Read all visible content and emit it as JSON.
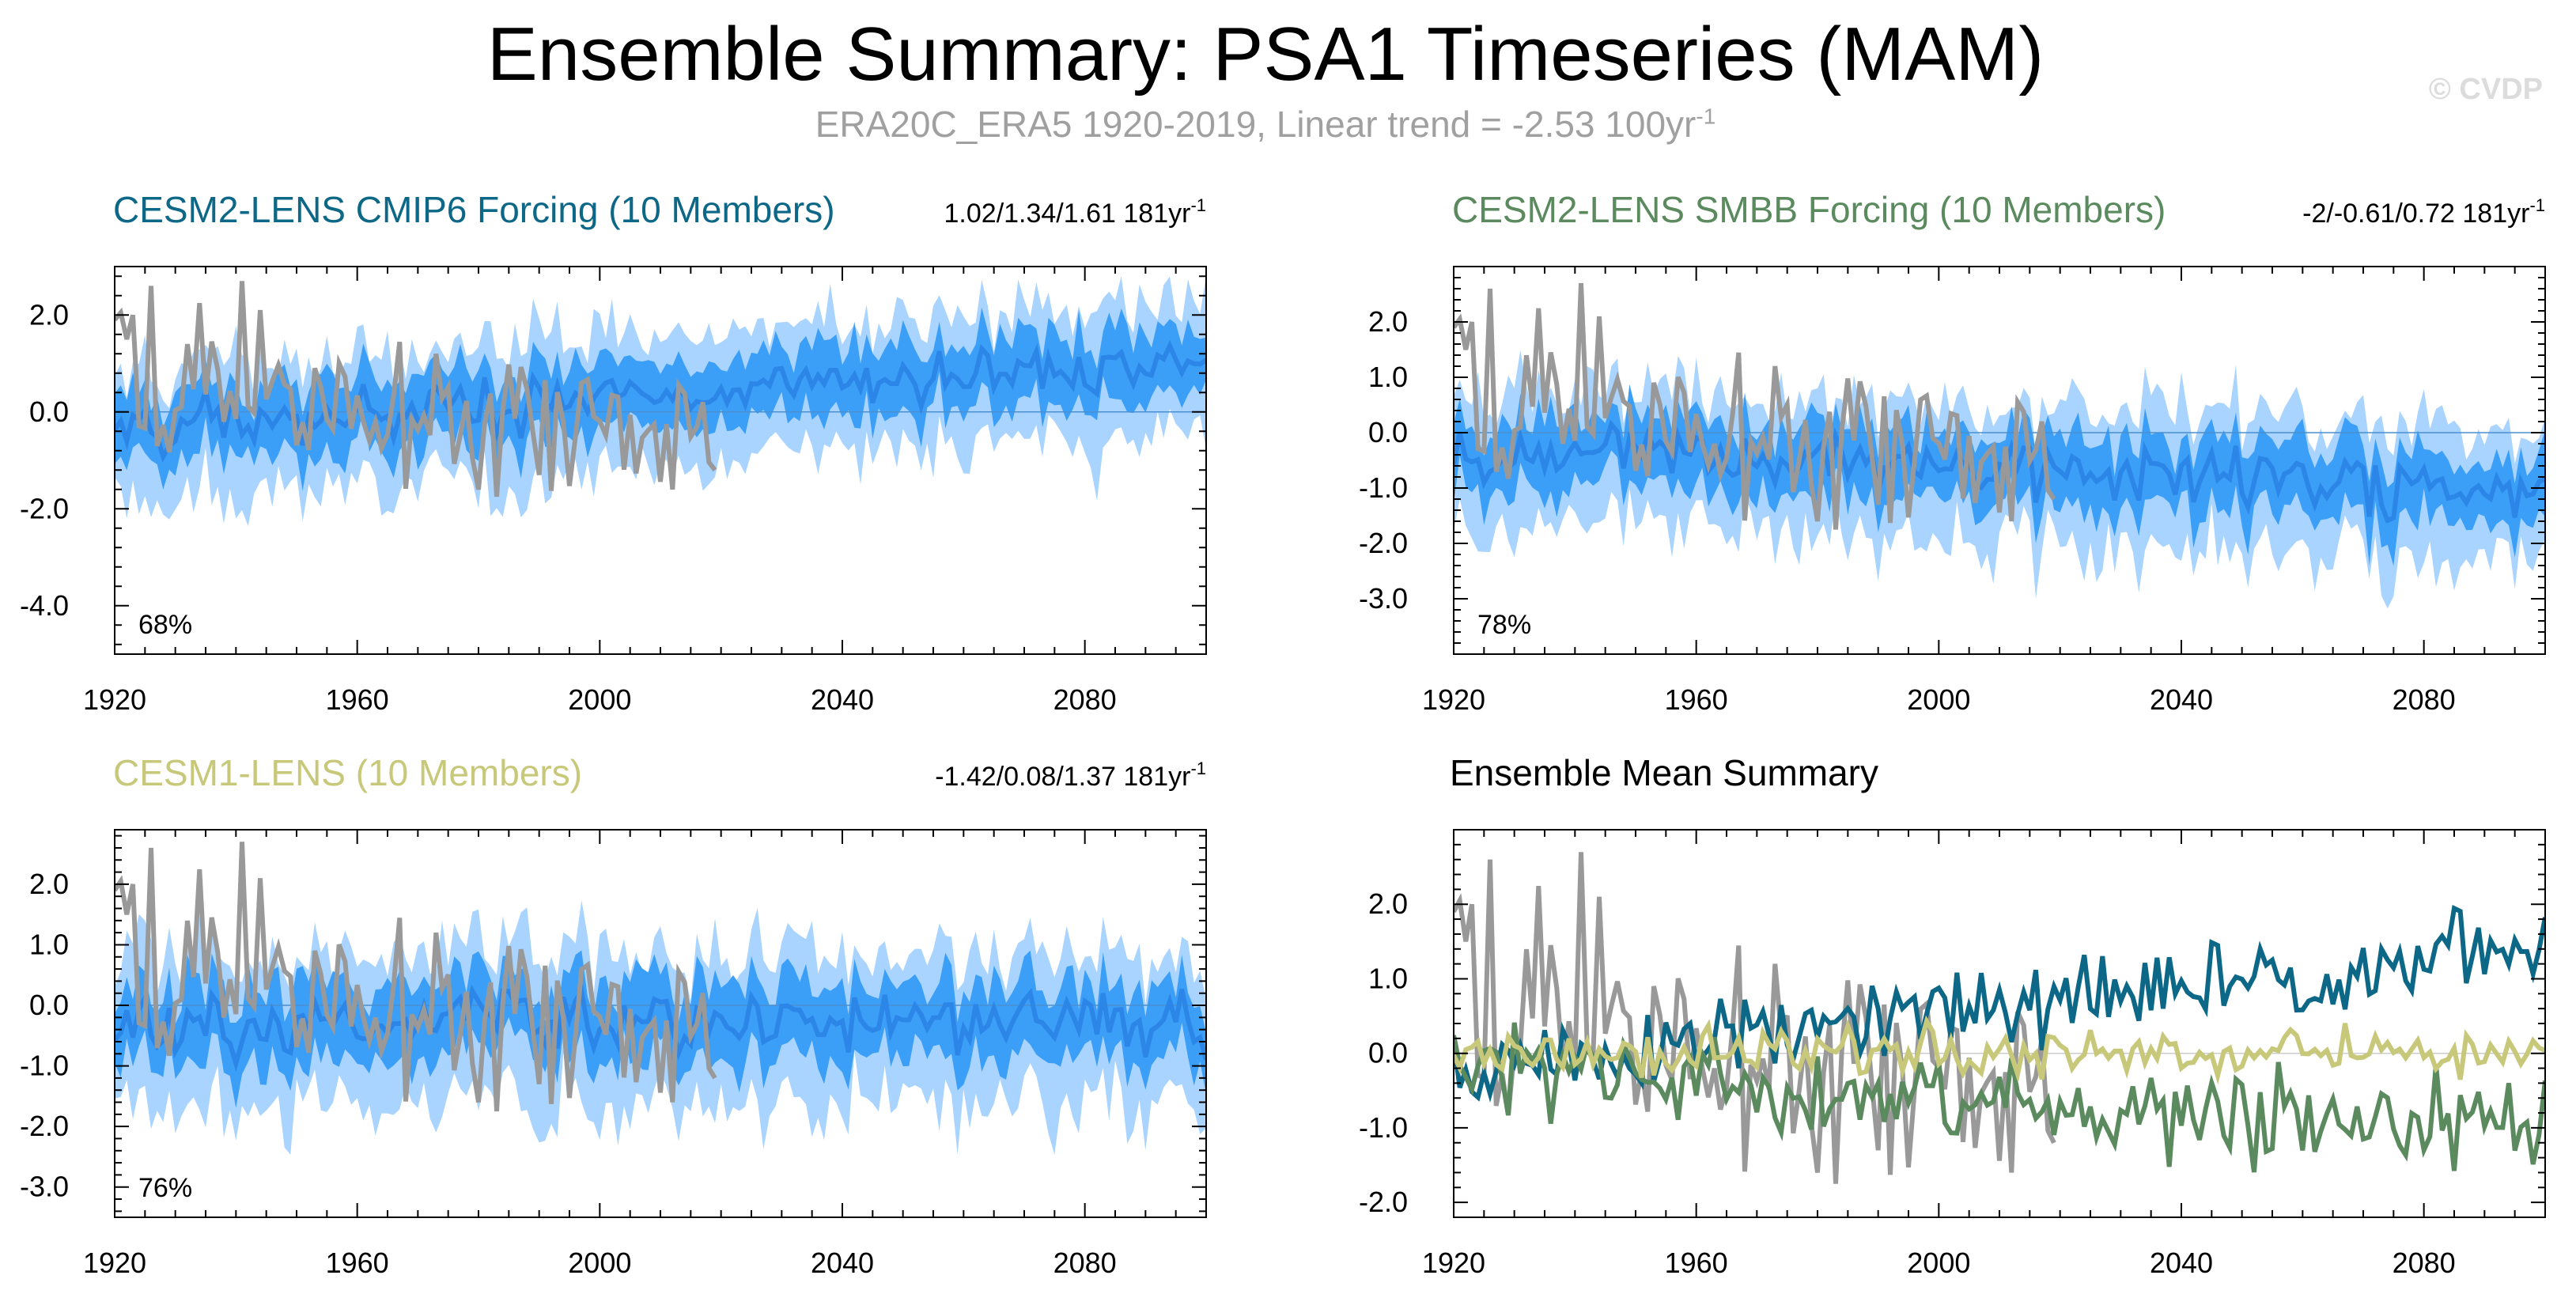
{
  "header": {
    "title": "Ensemble Summary: PSA1 Timeseries (MAM)",
    "subtitle_main": "ERA20C_ERA5 1920-2019, Linear trend = -2.53 100yr",
    "subtitle_sup": "-1",
    "copyright": "© CVDP"
  },
  "colors": {
    "obs": "#999999",
    "band_outer": "#a9d4ff",
    "band_inner": "#3c9ff7",
    "ens_mean": "#2c86e8",
    "cesm2_cmip6": "#0d6787",
    "cesm2_smbb": "#5a8a5e",
    "cesm1": "#c8c87a",
    "summary_title": "#000000"
  },
  "chart_data": [
    {
      "id": "cesm2-cmip6",
      "type": "line",
      "title": "CESM2-LENS CMIP6 Forcing (10 Members)",
      "title_color": "#0d6787",
      "stat": "1.02/1.34/1.61 181yr",
      "stat_sup": "-1",
      "percent": "68%",
      "xlim": [
        1920,
        2100
      ],
      "xticks": [
        1920,
        1960,
        2000,
        2040,
        2080
      ],
      "xtick_labels": [
        "1920",
        "1960",
        "2000",
        "2040",
        "2080"
      ],
      "ylim": [
        -5.0,
        3.0
      ],
      "yticks": [
        2.0,
        0.0,
        -2.0,
        -4.0
      ],
      "ytick_labels": [
        "2.0",
        "0.0",
        "-2.0",
        "-4.0"
      ],
      "trend_per_century": 1.34,
      "amp": 1.0,
      "seed": 11,
      "obs_series": "ERA20C_ERA5 1920-2019"
    },
    {
      "id": "cesm2-smbb",
      "type": "line",
      "title": "CESM2-LENS SMBB Forcing (10 Members)",
      "title_color": "#5a8a5e",
      "stat": "-2/-0.61/0.72 181yr",
      "stat_sup": "-1",
      "percent": "78%",
      "xlim": [
        1920,
        2100
      ],
      "xticks": [
        1920,
        1960,
        2000,
        2040,
        2080
      ],
      "xtick_labels": [
        "1920",
        "1960",
        "2000",
        "2040",
        "2080"
      ],
      "ylim": [
        -4.0,
        3.0
      ],
      "yticks": [
        2.0,
        1.0,
        0.0,
        -1.0,
        -2.0,
        -3.0
      ],
      "ytick_labels": [
        "2.0",
        "1.0",
        "0.0",
        "-1.0",
        "-2.0",
        "-3.0"
      ],
      "trend_per_century": -0.61,
      "amp": 0.9,
      "seed": 23,
      "obs_series": "ERA20C_ERA5 1920-2019"
    },
    {
      "id": "cesm1",
      "type": "line",
      "title": "CESM1-LENS (10 Members)",
      "title_color": "#c8c87a",
      "stat": "-1.42/0.08/1.37 181yr",
      "stat_sup": "-1",
      "percent": "76%",
      "xlim": [
        1920,
        2100
      ],
      "xticks": [
        1920,
        1960,
        2000,
        2040,
        2080
      ],
      "xtick_labels": [
        "1920",
        "1960",
        "2000",
        "2040",
        "2080"
      ],
      "ylim": [
        -3.5,
        2.9
      ],
      "yticks": [
        2.0,
        1.0,
        0.0,
        -1.0,
        -2.0,
        -3.0
      ],
      "ytick_labels": [
        "2.0",
        "1.0",
        "0.0",
        "-1.0",
        "-2.0",
        "-3.0"
      ],
      "trend_per_century": 0.08,
      "amp": 0.9,
      "seed": 37,
      "obs_series": "ERA20C_ERA5 1920-2019"
    },
    {
      "id": "summary",
      "type": "line",
      "title": "Ensemble Mean Summary",
      "title_color": "#000000",
      "xlim": [
        1920,
        2100
      ],
      "xticks": [
        1920,
        1960,
        2000,
        2040,
        2080
      ],
      "xtick_labels": [
        "1920",
        "1960",
        "2000",
        "2040",
        "2080"
      ],
      "ylim": [
        -2.2,
        3.0
      ],
      "yticks": [
        2.0,
        1.0,
        0.0,
        -1.0,
        -2.0
      ],
      "ytick_labels": [
        "2.0",
        "1.0",
        "0.0",
        "-1.0",
        "-2.0"
      ],
      "series": [
        {
          "name": "ERA20C_ERA5",
          "color": "#999999"
        },
        {
          "name": "CESM2-LENS CMIP6 Forcing",
          "color": "#0d6787",
          "trend_per_century": 1.34
        },
        {
          "name": "CESM2-LENS SMBB Forcing",
          "color": "#5a8a5e",
          "trend_per_century": -0.61
        },
        {
          "name": "CESM1-LENS",
          "color": "#c8c87a",
          "trend_per_century": 0.08
        }
      ]
    }
  ]
}
